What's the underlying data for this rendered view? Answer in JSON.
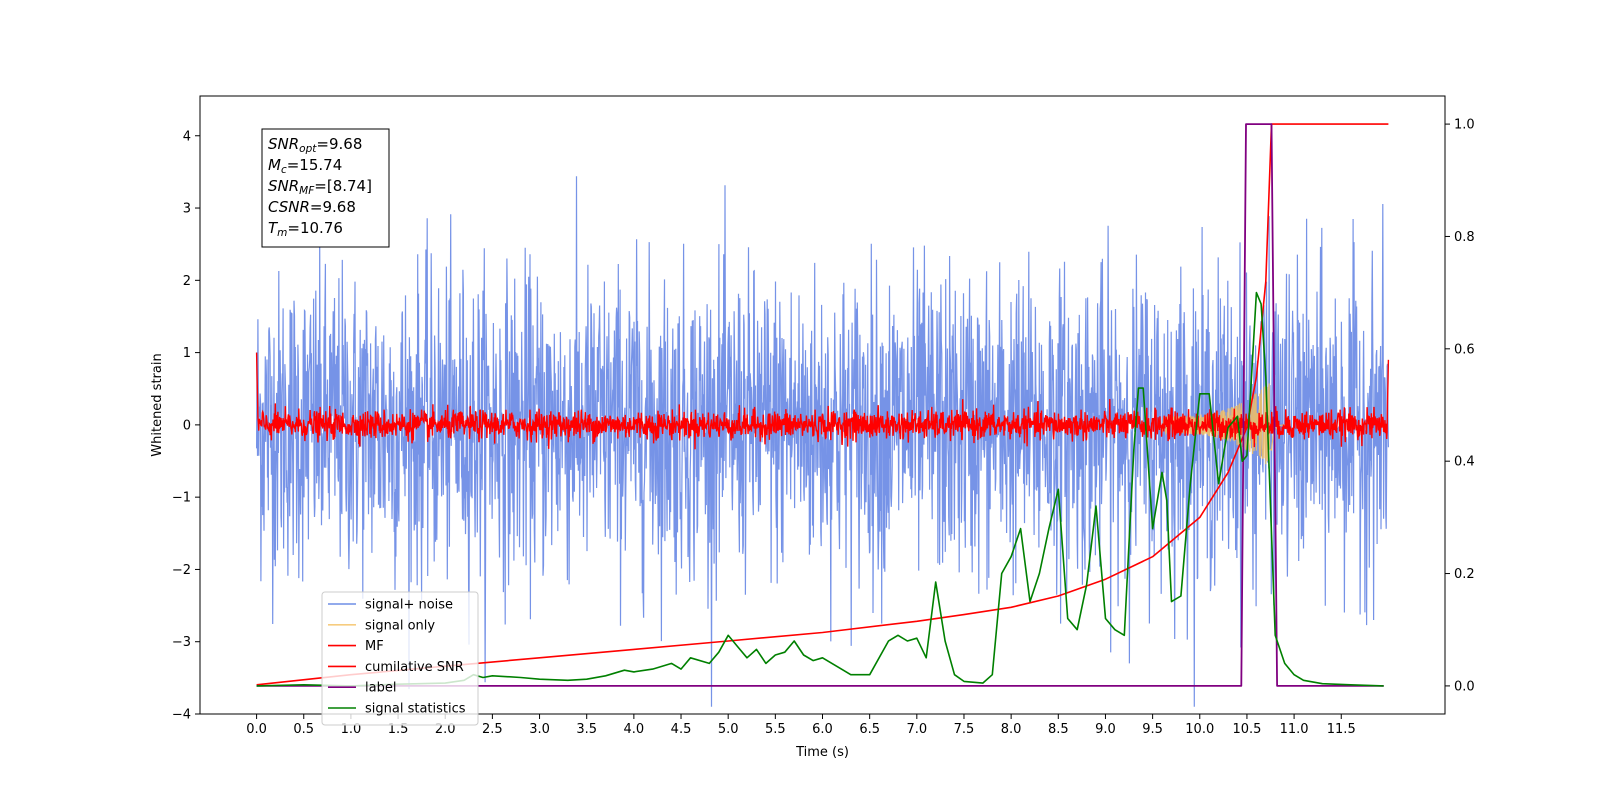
{
  "chart_data": {
    "type": "line",
    "xlabel": "Time (s)",
    "ylabel": "Whitened strain",
    "xlim": [
      -0.6,
      12.6
    ],
    "ylim": [
      -4,
      4.55
    ],
    "y2lim": [
      -0.05,
      1.05
    ],
    "x_ticks": [
      "0.0",
      "0.5",
      "1.0",
      "1.5",
      "2.0",
      "2.5",
      "3.0",
      "3.5",
      "4.0",
      "4.5",
      "5.0",
      "5.5",
      "6.0",
      "6.5",
      "7.0",
      "7.5",
      "8.0",
      "8.5",
      "9.0",
      "9.5",
      "10.0",
      "10.5",
      "11.0",
      "11.5"
    ],
    "y_ticks": [
      "−4",
      "−3",
      "−2",
      "−1",
      "0",
      "1",
      "2",
      "3",
      "4"
    ],
    "y2_ticks": [
      "0.0",
      "0.2",
      "0.4",
      "0.6",
      "0.8",
      "1.0"
    ],
    "legend_position": "lower-left",
    "series": [
      {
        "name": "signal+ noise",
        "color": "#6f8de6",
        "axis": "left",
        "style": "noise",
        "x_range": [
          0,
          12.0
        ],
        "amplitude_std": 1.05
      },
      {
        "name": "signal only",
        "color": "#f5c060",
        "axis": "left",
        "style": "chirp",
        "merger_time": 10.76
      },
      {
        "name": "MF",
        "color": "#ff0000",
        "axis": "left",
        "style": "noise",
        "x_range": [
          0,
          12.0
        ],
        "amplitude_std": 0.1
      },
      {
        "name": "cumilative SNR",
        "color": "#ff0000",
        "axis": "right",
        "x": [
          0.0,
          1.0,
          2.0,
          3.0,
          4.0,
          5.0,
          6.0,
          7.0,
          7.5,
          8.0,
          8.5,
          9.0,
          9.5,
          10.0,
          10.3,
          10.5,
          10.6,
          10.7,
          10.76,
          12.0
        ],
        "y": [
          0.002,
          0.02,
          0.035,
          0.05,
          0.065,
          0.08,
          0.095,
          0.115,
          0.127,
          0.14,
          0.16,
          0.19,
          0.23,
          0.3,
          0.38,
          0.46,
          0.55,
          0.72,
          1.0,
          1.0
        ]
      },
      {
        "name": "label",
        "color": "#800080",
        "axis": "right",
        "x": [
          0.0,
          10.44,
          10.49,
          10.76,
          10.82,
          11.95
        ],
        "y": [
          0.0,
          0.0,
          1.0,
          1.0,
          0.0,
          0.0
        ]
      },
      {
        "name": "signal statistics",
        "color": "#008000",
        "axis": "right",
        "x": [
          0.0,
          0.5,
          1.0,
          1.5,
          2.0,
          2.2,
          2.3,
          2.4,
          2.5,
          2.8,
          3.0,
          3.3,
          3.5,
          3.7,
          3.9,
          4.0,
          4.2,
          4.4,
          4.5,
          4.6,
          4.8,
          4.9,
          5.0,
          5.1,
          5.2,
          5.3,
          5.4,
          5.5,
          5.6,
          5.7,
          5.8,
          5.9,
          6.0,
          6.2,
          6.3,
          6.5,
          6.7,
          6.8,
          6.9,
          7.0,
          7.1,
          7.2,
          7.3,
          7.4,
          7.5,
          7.7,
          7.8,
          7.9,
          8.0,
          8.1,
          8.2,
          8.3,
          8.4,
          8.5,
          8.6,
          8.7,
          8.8,
          8.9,
          9.0,
          9.1,
          9.2,
          9.3,
          9.35,
          9.4,
          9.5,
          9.6,
          9.65,
          9.7,
          9.8,
          9.9,
          10.0,
          10.1,
          10.2,
          10.3,
          10.4,
          10.45,
          10.5,
          10.6,
          10.65,
          10.7,
          10.8,
          10.9,
          11.0,
          11.1,
          11.3,
          11.6,
          11.95
        ],
        "y": [
          0.0,
          0.002,
          0.0,
          0.003,
          0.005,
          0.01,
          0.02,
          0.015,
          0.018,
          0.015,
          0.012,
          0.01,
          0.012,
          0.018,
          0.028,
          0.025,
          0.03,
          0.04,
          0.03,
          0.05,
          0.04,
          0.06,
          0.09,
          0.07,
          0.05,
          0.065,
          0.04,
          0.055,
          0.06,
          0.08,
          0.055,
          0.045,
          0.05,
          0.03,
          0.02,
          0.02,
          0.08,
          0.09,
          0.08,
          0.085,
          0.05,
          0.185,
          0.08,
          0.02,
          0.008,
          0.005,
          0.02,
          0.2,
          0.23,
          0.28,
          0.15,
          0.2,
          0.28,
          0.35,
          0.12,
          0.1,
          0.18,
          0.32,
          0.12,
          0.1,
          0.09,
          0.42,
          0.53,
          0.53,
          0.28,
          0.38,
          0.33,
          0.15,
          0.16,
          0.36,
          0.52,
          0.52,
          0.36,
          0.46,
          0.48,
          0.4,
          0.41,
          0.7,
          0.68,
          0.55,
          0.09,
          0.04,
          0.02,
          0.01,
          0.004,
          0.002,
          0.0
        ]
      }
    ],
    "annotation": [
      {
        "var": "SNR",
        "sub": "opt",
        "value": "=9.68"
      },
      {
        "var": "M",
        "sub": "c",
        "value": "=15.74"
      },
      {
        "var": "SNR",
        "sub": "MF",
        "value": "=[8.74]"
      },
      {
        "var": "CSNR",
        "sub": "",
        "value": "=9.68"
      },
      {
        "var": "T",
        "sub": "m",
        "value": "=10.76"
      }
    ]
  }
}
